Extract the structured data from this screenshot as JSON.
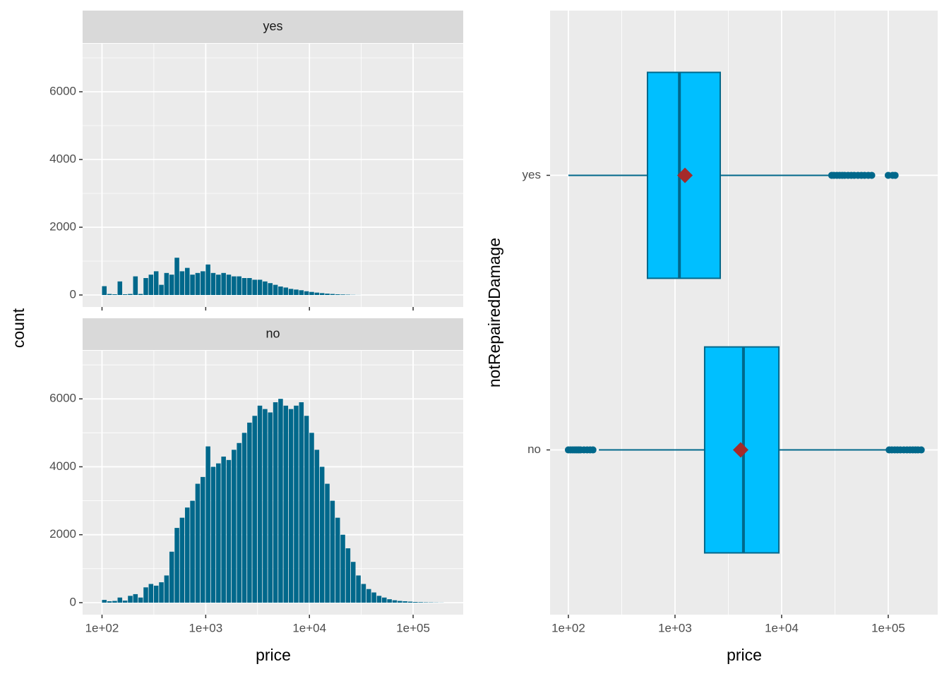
{
  "chart_data": [
    {
      "type": "histogram",
      "x_label": "price",
      "y_label": "count",
      "log_x": true,
      "grid": true,
      "xlim": [
        65,
        304000
      ],
      "ylim": [
        -354,
        7417
      ],
      "xticks": [
        {
          "value": 100,
          "label": "1e+02"
        },
        {
          "value": 1000,
          "label": "1e+03"
        },
        {
          "value": 10000,
          "label": "1e+04"
        },
        {
          "value": 100000,
          "label": "1e+05"
        }
      ],
      "xminorticks": [
        316.2,
        3162.3,
        31623
      ],
      "yticks": [
        0,
        2000,
        4000,
        6000
      ],
      "yminorticks": [
        1000,
        3000,
        5000,
        7000
      ],
      "bins": [
        100,
        112.2,
        125.9,
        141.3,
        158.5,
        177.8,
        199.5,
        223.9,
        251.2,
        281.8,
        316.2,
        354.8,
        398.1,
        446.7,
        501.2,
        562.3,
        631.0,
        707.9,
        794.3,
        891.3,
        1000,
        1122,
        1259,
        1413,
        1585,
        1778,
        1995,
        2239,
        2512,
        2818,
        3162,
        3548,
        3981,
        4467,
        5012,
        5623,
        6310,
        7079,
        7943,
        8913,
        10000,
        11220,
        12589,
        14125,
        15849,
        17783,
        19953,
        22387,
        25119,
        28184,
        31623,
        35481,
        39811,
        44668,
        50119,
        56234,
        63096,
        70795,
        79433,
        89125,
        100000,
        112202,
        125893,
        141254,
        158489,
        177828,
        199526
      ],
      "series": [
        {
          "name": "yes",
          "color": "#00688b",
          "values": [
            260,
            30,
            20,
            400,
            20,
            30,
            550,
            30,
            500,
            600,
            700,
            300,
            650,
            600,
            1100,
            700,
            800,
            600,
            650,
            700,
            900,
            650,
            600,
            650,
            600,
            550,
            550,
            500,
            500,
            450,
            450,
            400,
            350,
            300,
            250,
            220,
            180,
            160,
            140,
            110,
            90,
            70,
            55,
            40,
            30,
            20,
            15,
            10,
            5,
            2,
            0,
            0,
            0,
            0,
            0,
            0,
            0,
            0,
            0,
            0,
            0,
            0,
            0,
            0,
            0,
            0
          ]
        },
        {
          "name": "no",
          "color": "#00688b",
          "values": [
            80,
            40,
            50,
            150,
            60,
            200,
            250,
            150,
            450,
            550,
            500,
            600,
            800,
            1500,
            2200,
            2500,
            2800,
            3000,
            3500,
            3700,
            4600,
            4000,
            4100,
            4300,
            4200,
            4500,
            4700,
            5000,
            5300,
            5500,
            5800,
            5700,
            5600,
            5900,
            6000,
            5800,
            5700,
            5800,
            5900,
            5500,
            5000,
            4500,
            4000,
            3500,
            3000,
            2500,
            2000,
            1600,
            1200,
            800,
            550,
            400,
            300,
            200,
            150,
            100,
            70,
            50,
            40,
            30,
            20,
            15,
            10,
            8,
            5,
            3
          ]
        }
      ]
    },
    {
      "type": "boxplot",
      "x_label": "price",
      "y_label": "notRepairedDamage",
      "log_x": true,
      "grid": true,
      "xlim": [
        67.3,
        291000
      ],
      "xticks": [
        {
          "value": 100,
          "label": "1e+02"
        },
        {
          "value": 1000,
          "label": "1e+03"
        },
        {
          "value": 10000,
          "label": "1e+04"
        },
        {
          "value": 100000,
          "label": "1e+05"
        }
      ],
      "xminorticks": [
        316.2,
        3162.3,
        31623
      ],
      "categories": [
        "yes",
        "no"
      ],
      "fill": "#00bfff",
      "stroke": "#00688b",
      "mean_color": "#a52a2a",
      "whisker_low": [
        100,
        193
      ],
      "q1": [
        552,
        1897
      ],
      "median": [
        1100,
        4385
      ],
      "q3": [
        2655,
        9420
      ],
      "whisker_high": [
        28200,
        100000
      ],
      "mean": [
        1240,
        4130
      ],
      "outliers": [
        [
          29500,
          31000,
          33000,
          35000,
          37000,
          39000,
          42000,
          45000,
          48000,
          52000,
          56000,
          60000,
          65000,
          70000,
          100000,
          110000,
          116000
        ],
        [
          100,
          105,
          110,
          115,
          120,
          125,
          130,
          140,
          150,
          160,
          170,
          102000,
          108000,
          115000,
          122000,
          130000,
          140000,
          150000,
          160000,
          170000,
          180000,
          190000,
          204000
        ]
      ]
    }
  ]
}
